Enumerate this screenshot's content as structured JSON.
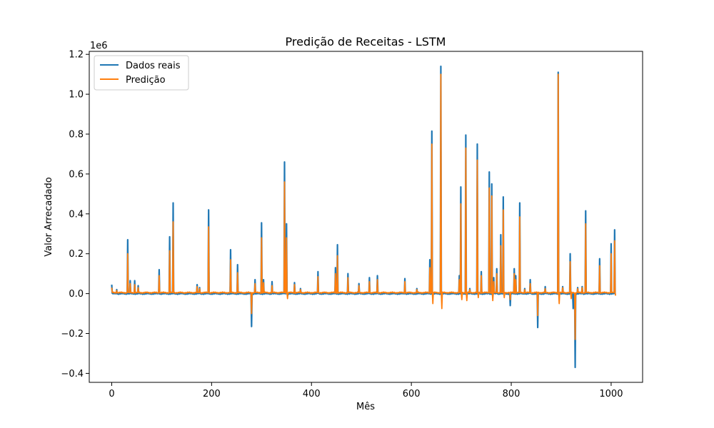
{
  "chart_data": {
    "type": "line",
    "title": "Predição de Receitas - LSTM",
    "xlabel": "Mês",
    "ylabel": "Valor Arrecadado",
    "y_offset_label": "1e6",
    "xlim": [
      -45,
      1063
    ],
    "ylim": [
      -0.445,
      1.215
    ],
    "x_ticks": [
      0,
      200,
      400,
      600,
      800,
      1000
    ],
    "x_tick_labels": [
      "0",
      "200",
      "400",
      "600",
      "800",
      "1000"
    ],
    "y_ticks": [
      -0.4,
      -0.2,
      0.0,
      0.2,
      0.4,
      0.6,
      0.8,
      1.0,
      1.2
    ],
    "y_tick_labels": [
      "−0.4",
      "−0.2",
      "0.0",
      "0.2",
      "0.4",
      "0.6",
      "0.8",
      "1.0",
      "1.2"
    ],
    "grid": false,
    "legend_position": "top-left",
    "x_points": 1010,
    "series": [
      {
        "name": "Dados reais",
        "color": "#1f77b4",
        "baseline": 0.0,
        "spikes": [
          [
            0,
            0.045
          ],
          [
            10,
            0.02
          ],
          [
            32,
            0.27
          ],
          [
            37,
            0.065
          ],
          [
            46,
            0.065
          ],
          [
            53,
            0.04
          ],
          [
            95,
            0.12
          ],
          [
            116,
            0.285
          ],
          [
            123,
            0.455
          ],
          [
            171,
            0.045
          ],
          [
            176,
            0.03
          ],
          [
            194,
            0.42
          ],
          [
            238,
            0.22
          ],
          [
            252,
            0.145
          ],
          [
            280,
            -0.165
          ],
          [
            287,
            0.07
          ],
          [
            300,
            0.355
          ],
          [
            304,
            0.07
          ],
          [
            321,
            0.06
          ],
          [
            346,
            0.66
          ],
          [
            350,
            0.35
          ],
          [
            366,
            0.055
          ],
          [
            378,
            0.025
          ],
          [
            413,
            0.11
          ],
          [
            448,
            0.13
          ],
          [
            452,
            0.245
          ],
          [
            473,
            0.1
          ],
          [
            495,
            0.05
          ],
          [
            516,
            0.08
          ],
          [
            532,
            0.09
          ],
          [
            587,
            0.075
          ],
          [
            611,
            0.025
          ],
          [
            637,
            0.17
          ],
          [
            641,
            0.815
          ],
          [
            659,
            1.14
          ],
          [
            696,
            0.09
          ],
          [
            699,
            0.535
          ],
          [
            709,
            0.795
          ],
          [
            717,
            0.025
          ],
          [
            732,
            0.75
          ],
          [
            740,
            0.11
          ],
          [
            756,
            0.61
          ],
          [
            761,
            0.55
          ],
          [
            765,
            0.08
          ],
          [
            771,
            0.125
          ],
          [
            779,
            0.295
          ],
          [
            784,
            0.485
          ],
          [
            798,
            -0.06
          ],
          [
            806,
            0.125
          ],
          [
            809,
            0.09
          ],
          [
            817,
            0.455
          ],
          [
            827,
            0.025
          ],
          [
            838,
            0.07
          ],
          [
            853,
            -0.17
          ],
          [
            868,
            0.035
          ],
          [
            894,
            1.11
          ],
          [
            903,
            0.035
          ],
          [
            918,
            0.2
          ],
          [
            924,
            -0.075
          ],
          [
            928,
            -0.37
          ],
          [
            933,
            0.03
          ],
          [
            942,
            0.035
          ],
          [
            949,
            0.415
          ],
          [
            977,
            0.175
          ],
          [
            1000,
            0.25
          ],
          [
            1007,
            0.32
          ]
        ]
      },
      {
        "name": "Predição",
        "color": "#ff7f0e",
        "baseline": 0.005,
        "spikes": [
          [
            0,
            0.03
          ],
          [
            10,
            0.015
          ],
          [
            32,
            0.2
          ],
          [
            37,
            0.05
          ],
          [
            46,
            0.045
          ],
          [
            53,
            0.03
          ],
          [
            95,
            0.09
          ],
          [
            116,
            0.215
          ],
          [
            123,
            0.36
          ],
          [
            171,
            0.035
          ],
          [
            176,
            0.025
          ],
          [
            194,
            0.335
          ],
          [
            238,
            0.17
          ],
          [
            252,
            0.105
          ],
          [
            280,
            -0.1
          ],
          [
            287,
            0.05
          ],
          [
            300,
            0.28
          ],
          [
            304,
            0.055
          ],
          [
            321,
            0.04
          ],
          [
            346,
            0.56
          ],
          [
            350,
            0.28
          ],
          [
            352,
            -0.025
          ],
          [
            366,
            0.045
          ],
          [
            378,
            0.02
          ],
          [
            413,
            0.085
          ],
          [
            448,
            0.1
          ],
          [
            452,
            0.19
          ],
          [
            473,
            0.08
          ],
          [
            495,
            0.04
          ],
          [
            516,
            0.06
          ],
          [
            532,
            0.07
          ],
          [
            587,
            0.06
          ],
          [
            611,
            0.02
          ],
          [
            637,
            0.13
          ],
          [
            641,
            0.75
          ],
          [
            643,
            -0.05
          ],
          [
            659,
            1.1
          ],
          [
            661,
            -0.075
          ],
          [
            696,
            0.07
          ],
          [
            699,
            0.45
          ],
          [
            701,
            -0.03
          ],
          [
            709,
            0.73
          ],
          [
            711,
            -0.035
          ],
          [
            717,
            0.02
          ],
          [
            732,
            0.67
          ],
          [
            734,
            -0.02
          ],
          [
            740,
            0.09
          ],
          [
            756,
            0.53
          ],
          [
            761,
            0.49
          ],
          [
            763,
            -0.035
          ],
          [
            765,
            0.06
          ],
          [
            771,
            0.1
          ],
          [
            779,
            0.24
          ],
          [
            784,
            0.42
          ],
          [
            786,
            -0.02
          ],
          [
            798,
            -0.03
          ],
          [
            806,
            0.1
          ],
          [
            809,
            0.07
          ],
          [
            817,
            0.385
          ],
          [
            827,
            0.02
          ],
          [
            838,
            0.05
          ],
          [
            853,
            -0.11
          ],
          [
            868,
            0.025
          ],
          [
            894,
            1.1
          ],
          [
            896,
            -0.05
          ],
          [
            903,
            0.03
          ],
          [
            918,
            0.16
          ],
          [
            920,
            -0.025
          ],
          [
            928,
            -0.23
          ],
          [
            933,
            0.025
          ],
          [
            942,
            0.03
          ],
          [
            949,
            0.35
          ],
          [
            977,
            0.14
          ],
          [
            1000,
            0.2
          ],
          [
            1007,
            0.265
          ],
          [
            1009,
            -0.01
          ]
        ]
      }
    ]
  }
}
